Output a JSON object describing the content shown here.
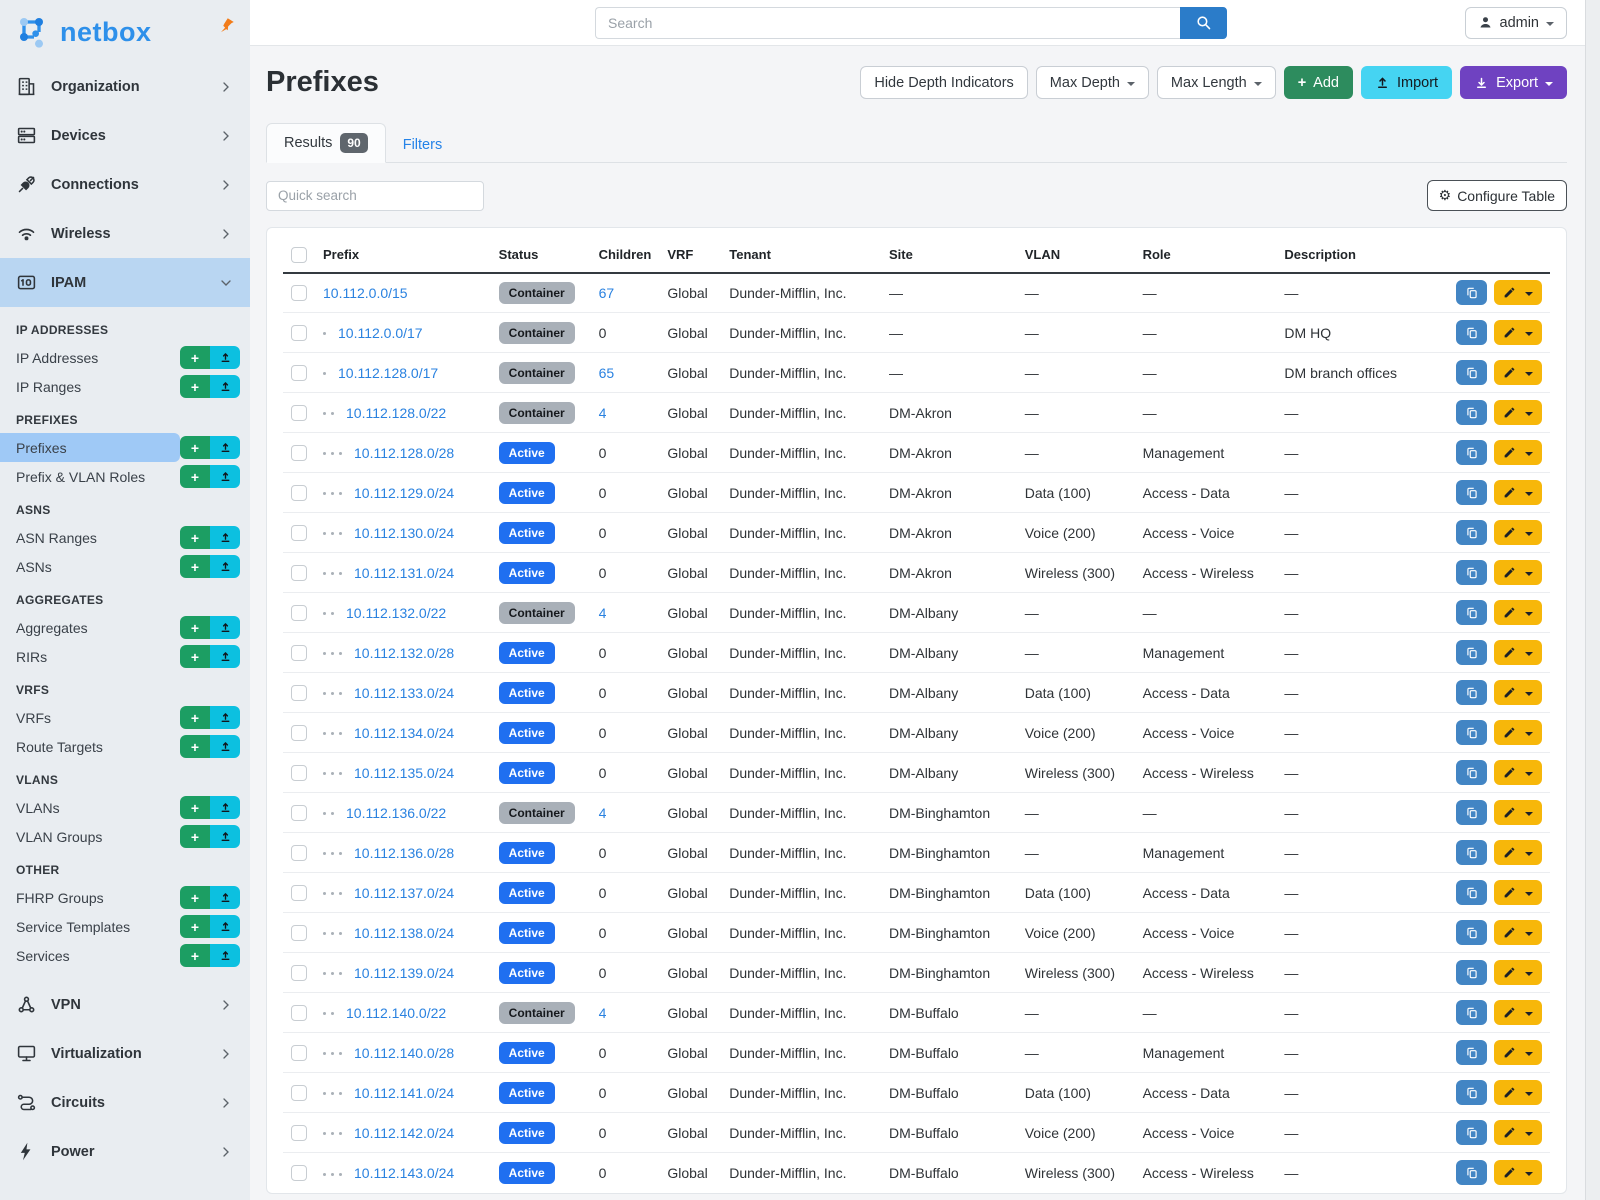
{
  "brand": {
    "name": "netbox"
  },
  "topbar": {
    "search_placeholder": "Search",
    "user": "admin"
  },
  "sidebar": {
    "nav_top": [
      {
        "label": "Organization",
        "icon": "building-icon"
      },
      {
        "label": "Devices",
        "icon": "server-icon"
      },
      {
        "label": "Connections",
        "icon": "plug-icon"
      },
      {
        "label": "Wireless",
        "icon": "wifi-icon"
      },
      {
        "label": "IPAM",
        "icon": "ipam-icon",
        "active": true,
        "expanded": true
      }
    ],
    "sections": [
      {
        "header": "IP ADDRESSES",
        "items": [
          {
            "label": "IP Addresses"
          },
          {
            "label": "IP Ranges"
          }
        ]
      },
      {
        "header": "PREFIXES",
        "items": [
          {
            "label": "Prefixes",
            "active": true
          },
          {
            "label": "Prefix & VLAN Roles"
          }
        ]
      },
      {
        "header": "ASNS",
        "items": [
          {
            "label": "ASN Ranges"
          },
          {
            "label": "ASNs"
          }
        ]
      },
      {
        "header": "AGGREGATES",
        "items": [
          {
            "label": "Aggregates"
          },
          {
            "label": "RIRs"
          }
        ]
      },
      {
        "header": "VRFS",
        "items": [
          {
            "label": "VRFs"
          },
          {
            "label": "Route Targets"
          }
        ]
      },
      {
        "header": "VLANS",
        "items": [
          {
            "label": "VLANs"
          },
          {
            "label": "VLAN Groups"
          }
        ]
      },
      {
        "header": "OTHER",
        "items": [
          {
            "label": "FHRP Groups"
          },
          {
            "label": "Service Templates"
          },
          {
            "label": "Services"
          }
        ]
      }
    ],
    "nav_bottom": [
      {
        "label": "VPN",
        "icon": "vpn-icon"
      },
      {
        "label": "Virtualization",
        "icon": "monitor-icon"
      },
      {
        "label": "Circuits",
        "icon": "route-icon"
      },
      {
        "label": "Power",
        "icon": "bolt-icon"
      }
    ]
  },
  "page": {
    "title": "Prefixes",
    "toolbar": {
      "hide_depth": "Hide Depth Indicators",
      "max_depth": "Max Depth",
      "max_length": "Max Length",
      "add": "Add",
      "import": "Import",
      "export": "Export"
    },
    "tabs": {
      "results": "Results",
      "count": "90",
      "filters": "Filters"
    },
    "quick_search_placeholder": "Quick search",
    "configure_table": "Configure Table"
  },
  "colors": {
    "link": "#2a82e0",
    "active_badge": "#1f6ff0",
    "container_badge": "#a9b0b8",
    "add_green": "#2d8c5e",
    "import_cyan": "#45d4f2",
    "export_purple": "#6f42c1",
    "edit_yellow": "#f7b70a",
    "copy_blue": "#4285c4",
    "sidebar_highlight": "#9fc9f6"
  },
  "table": {
    "columns": [
      "Prefix",
      "Status",
      "Children",
      "VRF",
      "Tenant",
      "Site",
      "VLAN",
      "Role",
      "Description"
    ],
    "rows": [
      {
        "depth": 0,
        "prefix": "10.112.0.0/15",
        "status": "Container",
        "children": "67",
        "children_link": true,
        "vrf": "Global",
        "tenant": "Dunder-Mifflin, Inc.",
        "site": "—",
        "vlan": "—",
        "role": "—",
        "description": "—"
      },
      {
        "depth": 1,
        "prefix": "10.112.0.0/17",
        "status": "Container",
        "children": "0",
        "children_link": false,
        "vrf": "Global",
        "tenant": "Dunder-Mifflin, Inc.",
        "site": "—",
        "vlan": "—",
        "role": "—",
        "description": "DM HQ"
      },
      {
        "depth": 1,
        "prefix": "10.112.128.0/17",
        "status": "Container",
        "children": "65",
        "children_link": true,
        "vrf": "Global",
        "tenant": "Dunder-Mifflin, Inc.",
        "site": "—",
        "vlan": "—",
        "role": "—",
        "description": "DM branch offices"
      },
      {
        "depth": 2,
        "prefix": "10.112.128.0/22",
        "status": "Container",
        "children": "4",
        "children_link": true,
        "vrf": "Global",
        "tenant": "Dunder-Mifflin, Inc.",
        "site": "DM-Akron",
        "vlan": "—",
        "role": "—",
        "description": "—"
      },
      {
        "depth": 3,
        "prefix": "10.112.128.0/28",
        "status": "Active",
        "children": "0",
        "children_link": false,
        "vrf": "Global",
        "tenant": "Dunder-Mifflin, Inc.",
        "site": "DM-Akron",
        "vlan": "—",
        "role": "Management",
        "description": "—"
      },
      {
        "depth": 3,
        "prefix": "10.112.129.0/24",
        "status": "Active",
        "children": "0",
        "children_link": false,
        "vrf": "Global",
        "tenant": "Dunder-Mifflin, Inc.",
        "site": "DM-Akron",
        "vlan": "Data (100)",
        "role": "Access - Data",
        "description": "—"
      },
      {
        "depth": 3,
        "prefix": "10.112.130.0/24",
        "status": "Active",
        "children": "0",
        "children_link": false,
        "vrf": "Global",
        "tenant": "Dunder-Mifflin, Inc.",
        "site": "DM-Akron",
        "vlan": "Voice (200)",
        "role": "Access - Voice",
        "description": "—"
      },
      {
        "depth": 3,
        "prefix": "10.112.131.0/24",
        "status": "Active",
        "children": "0",
        "children_link": false,
        "vrf": "Global",
        "tenant": "Dunder-Mifflin, Inc.",
        "site": "DM-Akron",
        "vlan": "Wireless (300)",
        "role": "Access - Wireless",
        "description": "—"
      },
      {
        "depth": 2,
        "prefix": "10.112.132.0/22",
        "status": "Container",
        "children": "4",
        "children_link": true,
        "vrf": "Global",
        "tenant": "Dunder-Mifflin, Inc.",
        "site": "DM-Albany",
        "vlan": "—",
        "role": "—",
        "description": "—"
      },
      {
        "depth": 3,
        "prefix": "10.112.132.0/28",
        "status": "Active",
        "children": "0",
        "children_link": false,
        "vrf": "Global",
        "tenant": "Dunder-Mifflin, Inc.",
        "site": "DM-Albany",
        "vlan": "—",
        "role": "Management",
        "description": "—"
      },
      {
        "depth": 3,
        "prefix": "10.112.133.0/24",
        "status": "Active",
        "children": "0",
        "children_link": false,
        "vrf": "Global",
        "tenant": "Dunder-Mifflin, Inc.",
        "site": "DM-Albany",
        "vlan": "Data (100)",
        "role": "Access - Data",
        "description": "—"
      },
      {
        "depth": 3,
        "prefix": "10.112.134.0/24",
        "status": "Active",
        "children": "0",
        "children_link": false,
        "vrf": "Global",
        "tenant": "Dunder-Mifflin, Inc.",
        "site": "DM-Albany",
        "vlan": "Voice (200)",
        "role": "Access - Voice",
        "description": "—"
      },
      {
        "depth": 3,
        "prefix": "10.112.135.0/24",
        "status": "Active",
        "children": "0",
        "children_link": false,
        "vrf": "Global",
        "tenant": "Dunder-Mifflin, Inc.",
        "site": "DM-Albany",
        "vlan": "Wireless (300)",
        "role": "Access - Wireless",
        "description": "—"
      },
      {
        "depth": 2,
        "prefix": "10.112.136.0/22",
        "status": "Container",
        "children": "4",
        "children_link": true,
        "vrf": "Global",
        "tenant": "Dunder-Mifflin, Inc.",
        "site": "DM-Binghamton",
        "vlan": "—",
        "role": "—",
        "description": "—"
      },
      {
        "depth": 3,
        "prefix": "10.112.136.0/28",
        "status": "Active",
        "children": "0",
        "children_link": false,
        "vrf": "Global",
        "tenant": "Dunder-Mifflin, Inc.",
        "site": "DM-Binghamton",
        "vlan": "—",
        "role": "Management",
        "description": "—"
      },
      {
        "depth": 3,
        "prefix": "10.112.137.0/24",
        "status": "Active",
        "children": "0",
        "children_link": false,
        "vrf": "Global",
        "tenant": "Dunder-Mifflin, Inc.",
        "site": "DM-Binghamton",
        "vlan": "Data (100)",
        "role": "Access - Data",
        "description": "—"
      },
      {
        "depth": 3,
        "prefix": "10.112.138.0/24",
        "status": "Active",
        "children": "0",
        "children_link": false,
        "vrf": "Global",
        "tenant": "Dunder-Mifflin, Inc.",
        "site": "DM-Binghamton",
        "vlan": "Voice (200)",
        "role": "Access - Voice",
        "description": "—"
      },
      {
        "depth": 3,
        "prefix": "10.112.139.0/24",
        "status": "Active",
        "children": "0",
        "children_link": false,
        "vrf": "Global",
        "tenant": "Dunder-Mifflin, Inc.",
        "site": "DM-Binghamton",
        "vlan": "Wireless (300)",
        "role": "Access - Wireless",
        "description": "—"
      },
      {
        "depth": 2,
        "prefix": "10.112.140.0/22",
        "status": "Container",
        "children": "4",
        "children_link": true,
        "vrf": "Global",
        "tenant": "Dunder-Mifflin, Inc.",
        "site": "DM-Buffalo",
        "vlan": "—",
        "role": "—",
        "description": "—"
      },
      {
        "depth": 3,
        "prefix": "10.112.140.0/28",
        "status": "Active",
        "children": "0",
        "children_link": false,
        "vrf": "Global",
        "tenant": "Dunder-Mifflin, Inc.",
        "site": "DM-Buffalo",
        "vlan": "—",
        "role": "Management",
        "description": "—"
      },
      {
        "depth": 3,
        "prefix": "10.112.141.0/24",
        "status": "Active",
        "children": "0",
        "children_link": false,
        "vrf": "Global",
        "tenant": "Dunder-Mifflin, Inc.",
        "site": "DM-Buffalo",
        "vlan": "Data (100)",
        "role": "Access - Data",
        "description": "—"
      },
      {
        "depth": 3,
        "prefix": "10.112.142.0/24",
        "status": "Active",
        "children": "0",
        "children_link": false,
        "vrf": "Global",
        "tenant": "Dunder-Mifflin, Inc.",
        "site": "DM-Buffalo",
        "vlan": "Voice (200)",
        "role": "Access - Voice",
        "description": "—"
      },
      {
        "depth": 3,
        "prefix": "10.112.143.0/24",
        "status": "Active",
        "children": "0",
        "children_link": false,
        "vrf": "Global",
        "tenant": "Dunder-Mifflin, Inc.",
        "site": "DM-Buffalo",
        "vlan": "Wireless (300)",
        "role": "Access - Wireless",
        "description": "—"
      }
    ]
  }
}
